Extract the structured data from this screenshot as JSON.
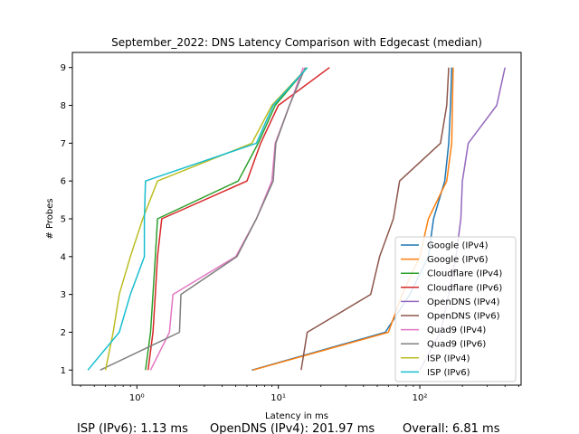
{
  "chart_data": {
    "type": "line",
    "title": "September_2022: DNS Latency Comparison with Edgecast (median)",
    "xlabel": "Latency in ms",
    "ylabel": "# Probes",
    "xscale": "log",
    "xlim": [
      0.35,
      520
    ],
    "ylim": [
      0.6,
      9.4
    ],
    "xticks": [
      {
        "value": 1,
        "label": "10⁰"
      },
      {
        "value": 10,
        "label": "10¹"
      },
      {
        "value": 100,
        "label": "10²"
      }
    ],
    "yticks": [
      1,
      2,
      3,
      4,
      5,
      6,
      7,
      8,
      9
    ],
    "grid": false,
    "legend": "lower-right",
    "series": [
      {
        "name": "Google (IPv4)",
        "color": "#1f77b4",
        "points": [
          [
            6.5,
            1
          ],
          [
            57,
            2
          ],
          [
            85,
            3
          ],
          [
            115,
            4
          ],
          [
            125,
            5
          ],
          [
            150,
            6
          ],
          [
            160,
            7
          ],
          [
            165,
            8
          ],
          [
            168,
            9
          ]
        ]
      },
      {
        "name": "Google (IPv6)",
        "color": "#ff7f0e",
        "points": [
          [
            6.6,
            1
          ],
          [
            60,
            2
          ],
          [
            75,
            3
          ],
          [
            100,
            4
          ],
          [
            115,
            5
          ],
          [
            155,
            6
          ],
          [
            168,
            7
          ],
          [
            170,
            8
          ],
          [
            172,
            9
          ]
        ]
      },
      {
        "name": "Cloudflare (IPv4)",
        "color": "#2ca02c",
        "points": [
          [
            1.15,
            1
          ],
          [
            1.25,
            2
          ],
          [
            1.3,
            3
          ],
          [
            1.35,
            4
          ],
          [
            1.4,
            5
          ],
          [
            5.2,
            6
          ],
          [
            7.2,
            7
          ],
          [
            9.5,
            8
          ],
          [
            16,
            9
          ]
        ]
      },
      {
        "name": "Cloudflare (IPv6)",
        "color": "#d62728",
        "points": [
          [
            1.2,
            1
          ],
          [
            1.3,
            2
          ],
          [
            1.35,
            3
          ],
          [
            1.4,
            4
          ],
          [
            1.5,
            5
          ],
          [
            6,
            6
          ],
          [
            7.5,
            7
          ],
          [
            10,
            8
          ],
          [
            23,
            9
          ]
        ]
      },
      {
        "name": "OpenDNS (IPv4)",
        "color": "#9467bd",
        "points": [
          [
            100,
            1
          ],
          [
            140,
            2
          ],
          [
            160,
            3
          ],
          [
            180,
            4
          ],
          [
            195,
            5
          ],
          [
            200,
            6
          ],
          [
            220,
            7
          ],
          [
            350,
            8
          ],
          [
            400,
            9
          ]
        ]
      },
      {
        "name": "OpenDNS (IPv6)",
        "color": "#8c564b",
        "points": [
          [
            14.5,
            1
          ],
          [
            16,
            2
          ],
          [
            45,
            3
          ],
          [
            52,
            4
          ],
          [
            65,
            5
          ],
          [
            72,
            6
          ],
          [
            140,
            7
          ],
          [
            155,
            8
          ],
          [
            160,
            9
          ]
        ]
      },
      {
        "name": "Quad9 (IPv4)",
        "color": "#e377c2",
        "points": [
          [
            1.25,
            1
          ],
          [
            1.7,
            2
          ],
          [
            1.8,
            3
          ],
          [
            5,
            4
          ],
          [
            7,
            5
          ],
          [
            9,
            6
          ],
          [
            9.5,
            7
          ],
          [
            12,
            8
          ],
          [
            15,
            9
          ]
        ]
      },
      {
        "name": "Quad9 (IPv6)",
        "color": "#7f7f7f",
        "points": [
          [
            0.55,
            1
          ],
          [
            2,
            2
          ],
          [
            2.05,
            3
          ],
          [
            5.1,
            4
          ],
          [
            7,
            5
          ],
          [
            9.2,
            6
          ],
          [
            9.6,
            7
          ],
          [
            12,
            8
          ],
          [
            15.5,
            9
          ]
        ]
      },
      {
        "name": "ISP (IPv4)",
        "color": "#bcbd22",
        "points": [
          [
            0.6,
            1
          ],
          [
            0.68,
            2
          ],
          [
            0.75,
            3
          ],
          [
            0.9,
            4
          ],
          [
            1.1,
            5
          ],
          [
            1.4,
            6
          ],
          [
            6.5,
            7
          ],
          [
            9,
            8
          ],
          [
            16,
            9
          ]
        ]
      },
      {
        "name": "ISP (IPv6)",
        "color": "#17becf",
        "points": [
          [
            0.45,
            1
          ],
          [
            0.75,
            2
          ],
          [
            0.9,
            3
          ],
          [
            1.13,
            4
          ],
          [
            1.13,
            5
          ],
          [
            1.15,
            6
          ],
          [
            7,
            7
          ],
          [
            9.2,
            8
          ],
          [
            16,
            9
          ]
        ]
      }
    ]
  },
  "footer": {
    "isp": "ISP (IPv6): 1.13 ms",
    "opendns": "OpenDNS (IPv4): 201.97 ms",
    "overall": "Overall: 6.81 ms"
  }
}
